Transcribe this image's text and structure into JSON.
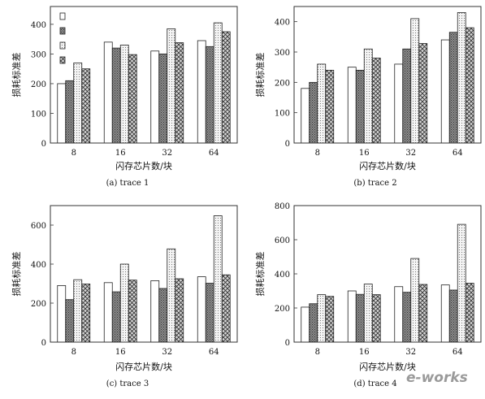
{
  "watermark": "e-works",
  "colors": {
    "bar_stroke": "#222222",
    "panel_stroke": "#333333"
  },
  "chart_data": [
    {
      "type": "bar",
      "caption": "(a)  trace 1",
      "xlabel": "闪存芯片数/块",
      "ylabel": "损耗标准差",
      "categories": [
        "8",
        "16",
        "32",
        "64"
      ],
      "ylim": [
        0,
        460
      ],
      "yticks": [
        0,
        100,
        200,
        300,
        400
      ],
      "legend": "top-left",
      "series": [
        {
          "fill": "white",
          "values": [
            200,
            340,
            310,
            345
          ]
        },
        {
          "fill": "dark",
          "values": [
            210,
            320,
            300,
            325
          ]
        },
        {
          "fill": "dotted",
          "values": [
            270,
            330,
            385,
            405
          ]
        },
        {
          "fill": "cross",
          "values": [
            250,
            298,
            338,
            375
          ]
        }
      ]
    },
    {
      "type": "bar",
      "caption": "(b)  trace 2",
      "xlabel": "闪存芯片数/块",
      "ylabel": "损耗标准差",
      "categories": [
        "8",
        "16",
        "32",
        "64"
      ],
      "ylim": [
        0,
        450
      ],
      "yticks": [
        0,
        100,
        200,
        300,
        400
      ],
      "series": [
        {
          "fill": "white",
          "values": [
            180,
            250,
            260,
            340
          ]
        },
        {
          "fill": "dark",
          "values": [
            200,
            240,
            310,
            365
          ]
        },
        {
          "fill": "dotted",
          "values": [
            260,
            310,
            410,
            430
          ]
        },
        {
          "fill": "cross",
          "values": [
            240,
            280,
            328,
            380
          ]
        }
      ]
    },
    {
      "type": "bar",
      "caption": "(c)  trace 3",
      "xlabel": "闪存芯片数/块",
      "ylabel": "损耗标准差",
      "categories": [
        "8",
        "16",
        "32",
        "64"
      ],
      "ylim": [
        0,
        700
      ],
      "yticks": [
        0,
        200,
        400,
        600
      ],
      "series": [
        {
          "fill": "white",
          "values": [
            290,
            305,
            315,
            335
          ]
        },
        {
          "fill": "dark",
          "values": [
            218,
            258,
            275,
            302
          ]
        },
        {
          "fill": "dotted",
          "values": [
            320,
            400,
            478,
            648
          ]
        },
        {
          "fill": "cross",
          "values": [
            298,
            318,
            325,
            345
          ]
        }
      ]
    },
    {
      "type": "bar",
      "caption": "(d)  trace 4",
      "xlabel": "闪存芯片数/块",
      "ylabel": "损耗标准差",
      "categories": [
        "8",
        "16",
        "32",
        "64"
      ],
      "ylim": [
        0,
        800
      ],
      "yticks": [
        0,
        200,
        400,
        600,
        800
      ],
      "series": [
        {
          "fill": "white",
          "values": [
            205,
            300,
            325,
            335
          ]
        },
        {
          "fill": "dark",
          "values": [
            225,
            280,
            292,
            305
          ]
        },
        {
          "fill": "dotted",
          "values": [
            278,
            340,
            490,
            690
          ]
        },
        {
          "fill": "cross",
          "values": [
            268,
            278,
            338,
            345
          ]
        }
      ]
    }
  ]
}
